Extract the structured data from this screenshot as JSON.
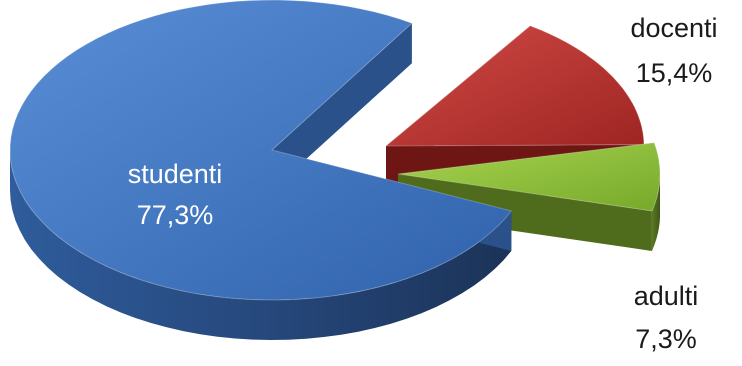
{
  "chart_data": {
    "type": "pie",
    "title": "",
    "style": "3d-exploded",
    "slices": [
      {
        "label": "studenti",
        "value": 77.3,
        "value_text": "77,3%",
        "color": "#3f74bf",
        "side_color": "#2a5189",
        "label_color": "#ffffff"
      },
      {
        "label": "docenti",
        "value": 15.4,
        "value_text": "15,4%",
        "color": "#b8312f",
        "side_color": "#6e1614",
        "label_color": "#1a1a1a"
      },
      {
        "label": "adulti",
        "value": 7.3,
        "value_text": "7,3%",
        "color": "#8fbf3a",
        "side_color": "#4f6b1c",
        "label_color": "#1a1a1a"
      }
    ]
  }
}
